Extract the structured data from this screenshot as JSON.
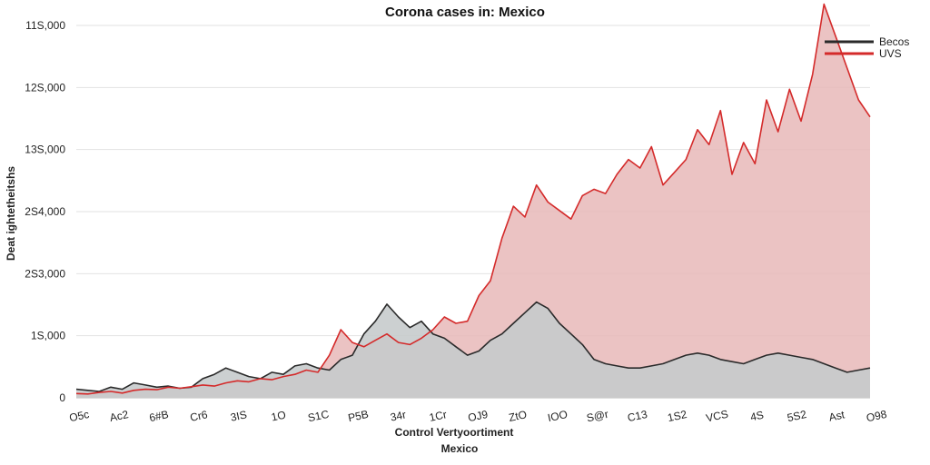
{
  "chart_data": {
    "type": "area",
    "title": "Corona cases in: Mexico",
    "xlabel_line1": "Control Vertyoortiment",
    "xlabel_line2": "Mexico",
    "ylabel": "Deat ightetheitshs",
    "y_ticks": [
      "0",
      "1S,000",
      "2S3,000",
      "2S4,000",
      "13S,000",
      "12S,000",
      "11S,000"
    ],
    "x_ticks": [
      "O5c",
      "Ac2",
      "6#B",
      "Cr6",
      "3IS",
      "1O",
      "S1C",
      "P5B",
      "34r",
      "1Cr",
      "OJ9",
      "ZtO",
      "IOO",
      "S@r",
      "C13",
      "1S2",
      "VCS",
      "4S",
      "5S2",
      "Ast",
      "O98"
    ],
    "ylim": [
      0,
      175000
    ],
    "grid": true,
    "legend": {
      "placement": "top-right"
    },
    "series": [
      {
        "name": "Becos",
        "line_color": "#2a2a2a",
        "fill_color": "#c6cbcc",
        "values": [
          4000,
          3500,
          3000,
          5000,
          4000,
          7000,
          6000,
          5000,
          5500,
          4500,
          5000,
          9000,
          11000,
          14000,
          12000,
          10000,
          9000,
          12000,
          11000,
          15000,
          16000,
          14000,
          13000,
          18000,
          20000,
          30000,
          36000,
          44000,
          38000,
          33000,
          36000,
          30000,
          28000,
          24000,
          20000,
          22000,
          27000,
          30000,
          35000,
          40000,
          45000,
          42000,
          35000,
          30000,
          25000,
          18000,
          16000,
          15000,
          14000,
          14000,
          15000,
          16000,
          18000,
          20000,
          21000,
          20000,
          18000,
          17000,
          16000,
          18000,
          20000,
          21000,
          20000,
          19000,
          18000,
          16000,
          14000,
          12000,
          13000,
          14000
        ]
      },
      {
        "name": "UVS",
        "line_color": "#d42a2a",
        "fill_color": "#e8b8b8",
        "values": [
          2000,
          1800,
          2500,
          3000,
          2200,
          3500,
          4000,
          3800,
          5000,
          4500,
          5200,
          6000,
          5500,
          7000,
          8000,
          7500,
          9000,
          8500,
          10000,
          11000,
          13000,
          12000,
          20000,
          32000,
          26000,
          24000,
          27000,
          30000,
          26000,
          25000,
          28000,
          32000,
          38000,
          35000,
          36000,
          48000,
          55000,
          75000,
          90000,
          85000,
          100000,
          92000,
          88000,
          84000,
          95000,
          98000,
          96000,
          105000,
          112000,
          108000,
          118000,
          100000,
          106000,
          112000,
          126000,
          119000,
          135000,
          105000,
          120000,
          110000,
          140000,
          125000,
          145000,
          130000,
          152000,
          185000,
          170000,
          155000,
          140000,
          132000
        ]
      }
    ]
  }
}
